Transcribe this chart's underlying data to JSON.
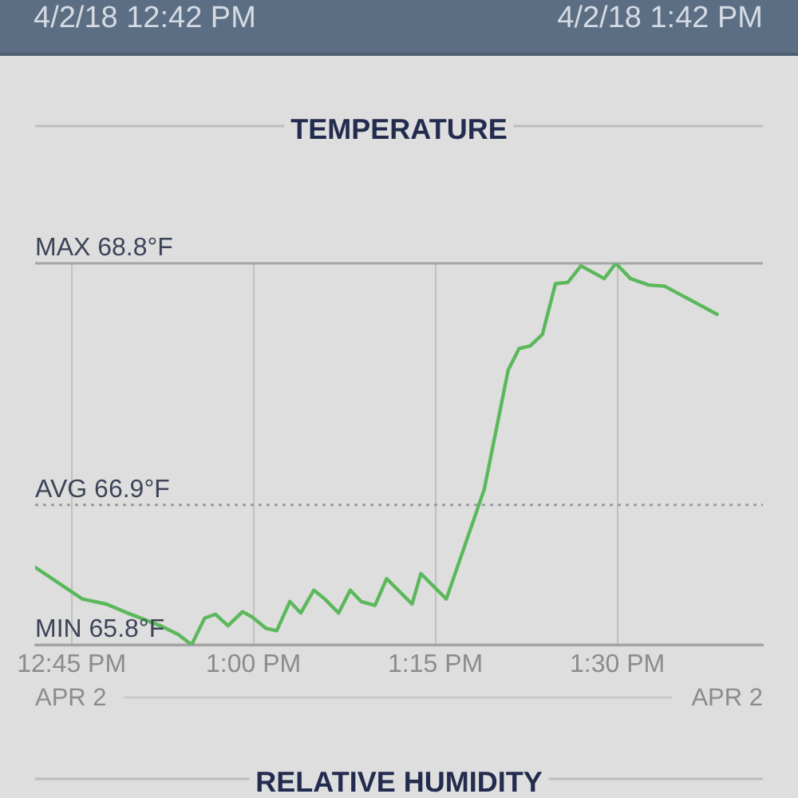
{
  "chart_data": {
    "type": "line",
    "title": "TEMPERATURE",
    "x": [
      12.7,
      12.765,
      12.798,
      12.827,
      12.872,
      12.897,
      12.915,
      12.933,
      12.948,
      12.965,
      12.985,
      12.998,
      13.017,
      13.032,
      13.05,
      13.065,
      13.083,
      13.098,
      13.117,
      13.133,
      13.148,
      13.167,
      13.183,
      13.218,
      13.23,
      13.265,
      13.317,
      13.35,
      13.365,
      13.38,
      13.397,
      13.415,
      13.432,
      13.45,
      13.482,
      13.498,
      13.518,
      13.543,
      13.565,
      13.637
    ],
    "values": [
      66.41,
      66.16,
      66.12,
      66.05,
      65.95,
      65.88,
      65.8,
      66.01,
      66.04,
      65.95,
      66.06,
      66.02,
      65.93,
      65.91,
      66.14,
      66.05,
      66.23,
      66.16,
      66.05,
      66.23,
      66.14,
      66.11,
      66.32,
      66.12,
      66.36,
      66.16,
      67.02,
      67.96,
      68.13,
      68.15,
      68.24,
      68.64,
      68.65,
      68.78,
      68.68,
      68.8,
      68.68,
      68.63,
      68.62,
      68.4
    ],
    "color": "#5cb85c",
    "xlim": [
      12.7,
      13.7
    ],
    "xticks": [
      {
        "value": 12.75,
        "label": "12:45 PM"
      },
      {
        "value": 13,
        "label": "1:00 PM"
      },
      {
        "value": 13.25,
        "label": "1:15 PM"
      },
      {
        "value": 13.5,
        "label": "1:30 PM"
      }
    ],
    "ylim": [
      65.8,
      68.8
    ],
    "ref_lines": [
      {
        "axis": "y",
        "value": 68.8,
        "label": "MAX 68.8°F",
        "color": "#a6a6a6",
        "line_style": "solid"
      },
      {
        "axis": "y",
        "value": 66.9,
        "label": "AVG 66.9°F",
        "color": "#9c9c9c",
        "line_style": "dotted"
      },
      {
        "axis": "y",
        "value": 65.8,
        "label": "MIN 65.8°F",
        "color": "#a3a3a3",
        "line_style": "solid"
      }
    ],
    "grid": "x",
    "tick_labels": "x",
    "annotations": [
      "4/2/18 12:42 PM",
      "4/2/18 1:42 PM",
      "APR 2",
      "APR 2",
      "RELATIVE HUMIDITY"
    ]
  }
}
